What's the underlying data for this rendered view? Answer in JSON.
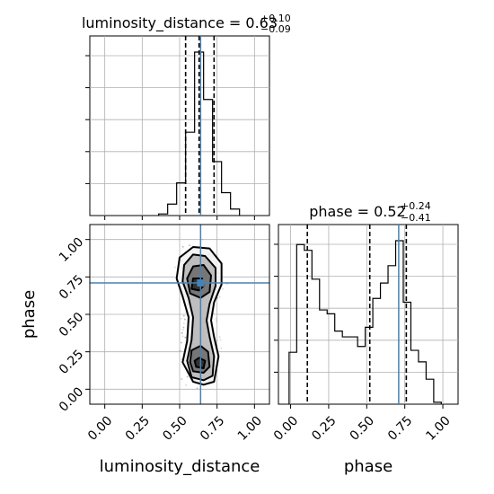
{
  "colors": {
    "truth": "#4682b4",
    "histogram": "#000000",
    "quantile": "#000000",
    "grid": "#b0b0b0",
    "density_levels": [
      "#f2f2f2",
      "#b8b8b8",
      "#6e6e6e",
      "#2b2b2b"
    ]
  },
  "chart_data": [
    {
      "id": "luminosity-histogram",
      "type": "histogram",
      "title": "luminosity_distance = 0.63",
      "title_sup": "+0.10",
      "title_sub": "−0.09",
      "xlim": [
        -0.1,
        1.1
      ],
      "bins": [
        {
          "start": 0.36,
          "end": 0.42,
          "count": 1
        },
        {
          "start": 0.42,
          "end": 0.48,
          "count": 7
        },
        {
          "start": 0.48,
          "end": 0.54,
          "count": 20
        },
        {
          "start": 0.54,
          "end": 0.6,
          "count": 51
        },
        {
          "start": 0.6,
          "end": 0.66,
          "count": 100
        },
        {
          "start": 0.66,
          "end": 0.72,
          "count": 71
        },
        {
          "start": 0.72,
          "end": 0.78,
          "count": 33
        },
        {
          "start": 0.78,
          "end": 0.84,
          "count": 14
        },
        {
          "start": 0.84,
          "end": 0.9,
          "count": 4
        }
      ],
      "quantiles": [
        0.54,
        0.63,
        0.73
      ],
      "truth": 0.64
    },
    {
      "id": "phase-histogram",
      "type": "histogram",
      "title": "phase = 0.52",
      "title_sup": "+0.24",
      "title_sub": "−0.41",
      "xlim": [
        -0.08,
        1.1
      ],
      "bins": [
        {
          "start": -0.01,
          "end": 0.04,
          "count": 27
        },
        {
          "start": 0.04,
          "end": 0.09,
          "count": 83
        },
        {
          "start": 0.09,
          "end": 0.14,
          "count": 80
        },
        {
          "start": 0.14,
          "end": 0.19,
          "count": 65
        },
        {
          "start": 0.19,
          "end": 0.24,
          "count": 49
        },
        {
          "start": 0.24,
          "end": 0.29,
          "count": 47
        },
        {
          "start": 0.29,
          "end": 0.34,
          "count": 38
        },
        {
          "start": 0.34,
          "end": 0.39,
          "count": 35
        },
        {
          "start": 0.39,
          "end": 0.44,
          "count": 35
        },
        {
          "start": 0.44,
          "end": 0.49,
          "count": 30
        },
        {
          "start": 0.49,
          "end": 0.54,
          "count": 40
        },
        {
          "start": 0.54,
          "end": 0.59,
          "count": 55
        },
        {
          "start": 0.59,
          "end": 0.64,
          "count": 63
        },
        {
          "start": 0.64,
          "end": 0.69,
          "count": 72
        },
        {
          "start": 0.69,
          "end": 0.74,
          "count": 85
        },
        {
          "start": 0.74,
          "end": 0.79,
          "count": 53
        },
        {
          "start": 0.79,
          "end": 0.84,
          "count": 28
        },
        {
          "start": 0.84,
          "end": 0.89,
          "count": 22
        },
        {
          "start": 0.89,
          "end": 0.94,
          "count": 13
        },
        {
          "start": 0.94,
          "end": 0.99,
          "count": 1
        }
      ],
      "quantiles": [
        0.11,
        0.52,
        0.76
      ],
      "truth": 0.71,
      "xticks": [
        0.0,
        0.25,
        0.5,
        0.75,
        1.0
      ],
      "xtick_labels": [
        "0.00",
        "0.25",
        "0.50",
        "0.75",
        "1.00"
      ],
      "xlabel": "phase"
    },
    {
      "id": "joint-density",
      "type": "contour-scatter",
      "xlim": [
        -0.1,
        1.1
      ],
      "ylim": [
        -0.1,
        1.1
      ],
      "xticks": [
        0.0,
        0.25,
        0.5,
        0.75,
        1.0
      ],
      "xtick_labels": [
        "0.00",
        "0.25",
        "0.50",
        "0.75",
        "1.00"
      ],
      "yticks": [
        0.0,
        0.25,
        0.5,
        0.75,
        1.0
      ],
      "ytick_labels": [
        "0.00",
        "0.25",
        "0.50",
        "0.75",
        "1.00"
      ],
      "xlabel": "luminosity_distance",
      "ylabel": "phase",
      "truth": {
        "x": 0.64,
        "y": 0.71
      },
      "contours": [
        {
          "level": 1,
          "points": [
            [
              0.59,
              0.05
            ],
            [
              0.66,
              0.03
            ],
            [
              0.73,
              0.05
            ],
            [
              0.76,
              0.22
            ],
            [
              0.73,
              0.35
            ],
            [
              0.71,
              0.46
            ],
            [
              0.73,
              0.58
            ],
            [
              0.78,
              0.7
            ],
            [
              0.78,
              0.84
            ],
            [
              0.7,
              0.94
            ],
            [
              0.59,
              0.95
            ],
            [
              0.5,
              0.88
            ],
            [
              0.48,
              0.74
            ],
            [
              0.52,
              0.62
            ],
            [
              0.56,
              0.48
            ],
            [
              0.55,
              0.32
            ],
            [
              0.52,
              0.18
            ]
          ]
        },
        {
          "level": 2,
          "points": [
            [
              0.58,
              0.08
            ],
            [
              0.66,
              0.06
            ],
            [
              0.72,
              0.09
            ],
            [
              0.73,
              0.22
            ],
            [
              0.7,
              0.35
            ],
            [
              0.68,
              0.46
            ],
            [
              0.7,
              0.57
            ],
            [
              0.74,
              0.69
            ],
            [
              0.74,
              0.81
            ],
            [
              0.67,
              0.89
            ],
            [
              0.59,
              0.9
            ],
            [
              0.53,
              0.83
            ],
            [
              0.52,
              0.72
            ],
            [
              0.56,
              0.61
            ],
            [
              0.59,
              0.48
            ],
            [
              0.58,
              0.33
            ],
            [
              0.55,
              0.19
            ]
          ]
        },
        {
          "level": 3,
          "points": [
            [
              0.59,
              0.12
            ],
            [
              0.66,
              0.11
            ],
            [
              0.7,
              0.15
            ],
            [
              0.69,
              0.25
            ],
            [
              0.64,
              0.29
            ],
            [
              0.58,
              0.26
            ],
            [
              0.57,
              0.18
            ]
          ]
        },
        {
          "level": 3,
          "points": [
            [
              0.57,
              0.64
            ],
            [
              0.64,
              0.61
            ],
            [
              0.7,
              0.65
            ],
            [
              0.71,
              0.76
            ],
            [
              0.66,
              0.83
            ],
            [
              0.59,
              0.82
            ],
            [
              0.55,
              0.74
            ]
          ]
        },
        {
          "level": 4,
          "points": [
            [
              0.58,
              0.67
            ],
            [
              0.63,
              0.66
            ],
            [
              0.66,
              0.69
            ],
            [
              0.65,
              0.74
            ],
            [
              0.59,
              0.74
            ]
          ]
        },
        {
          "level": 4,
          "points": [
            [
              0.61,
              0.15
            ],
            [
              0.66,
              0.14
            ],
            [
              0.67,
              0.19
            ],
            [
              0.63,
              0.21
            ],
            [
              0.6,
              0.19
            ]
          ]
        }
      ]
    }
  ]
}
